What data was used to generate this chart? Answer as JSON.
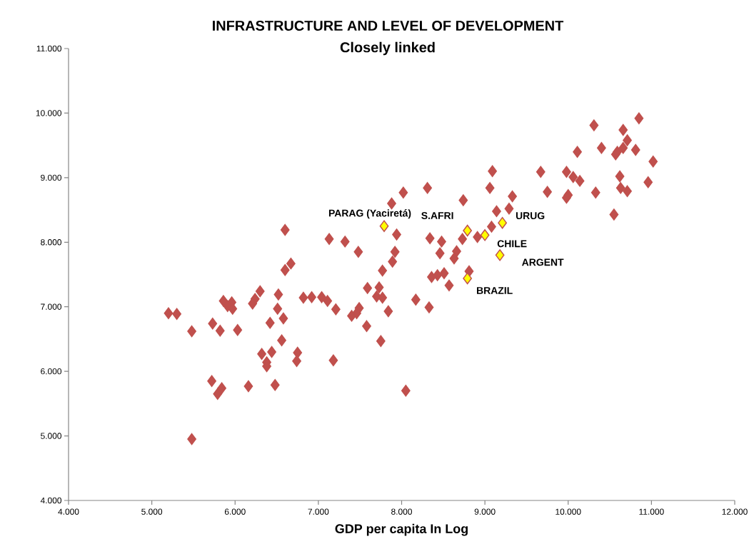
{
  "chart_data": {
    "type": "scatter",
    "title": "INFRASTRUCTURE AND LEVEL OF DEVELOPMENT",
    "subtitle": "Closely linked",
    "xlabel": "GDP per capita In Log",
    "xlim": [
      4,
      12
    ],
    "ylim": [
      4,
      11
    ],
    "xticks": [
      {
        "value": 4,
        "label": "4.000"
      },
      {
        "value": 5,
        "label": "5.000"
      },
      {
        "value": 6,
        "label": "6.000"
      },
      {
        "value": 7,
        "label": "7.000"
      },
      {
        "value": 8,
        "label": "8.000"
      },
      {
        "value": 9,
        "label": "9.000"
      },
      {
        "value": 10,
        "label": "10.000"
      },
      {
        "value": 11,
        "label": "11.000"
      },
      {
        "value": 12,
        "label": "12.000"
      }
    ],
    "yticks": [
      {
        "value": 4,
        "label": "4.000"
      },
      {
        "value": 5,
        "label": "5.000"
      },
      {
        "value": 6,
        "label": "6.000"
      },
      {
        "value": 7,
        "label": "7.000"
      },
      {
        "value": 8,
        "label": "8.000"
      },
      {
        "value": 9,
        "label": "9.000"
      },
      {
        "value": 10,
        "label": "10.000"
      },
      {
        "value": 11,
        "label": "11.000"
      }
    ],
    "marker": "diamond",
    "series": [
      {
        "color": "#c0504d",
        "x": [
          6.6,
          7.13,
          7.32,
          7.48,
          6.67,
          6.6,
          7.59,
          6.3,
          6.52,
          5.86,
          5.96,
          6.24,
          6.21,
          5.91,
          5.97,
          6.82,
          6.92,
          7.04,
          7.11,
          7.21,
          7.49,
          7.46,
          7.4,
          7.58,
          6.51,
          5.2,
          5.3,
          5.73,
          5.82,
          6.03,
          5.48,
          6.42,
          6.58,
          6.56,
          6.32,
          6.44,
          6.38,
          6.38,
          6.75,
          6.74,
          7.18,
          5.72,
          5.84,
          5.79,
          6.16,
          6.48,
          5.48,
          9.09,
          9.67,
          8.31,
          8.02,
          9.06,
          9.75,
          9.33,
          7.88,
          8.74,
          9.14,
          9.29,
          7.94,
          9.08,
          8.91,
          8.73,
          8.34,
          8.48,
          8.46,
          8.66,
          8.63,
          7.92,
          7.89,
          7.77,
          8.81,
          8.36,
          8.43,
          8.51,
          8.57,
          7.73,
          7.7,
          7.77,
          8.17,
          8.33,
          7.84,
          7.75,
          8.05,
          10.85,
          10.31,
          10.66,
          10.71,
          10.66,
          10.4,
          10.11,
          10.81,
          10.57,
          10.59,
          11.02,
          9.98,
          10.06,
          10.14,
          10.62,
          10.96,
          10.0,
          9.98,
          10.33,
          10.63,
          10.71,
          10.55
        ],
        "values": [
          8.19,
          8.05,
          8.01,
          7.85,
          7.67,
          7.57,
          7.29,
          7.24,
          7.19,
          7.09,
          7.07,
          7.12,
          7.05,
          7.01,
          6.97,
          7.14,
          7.15,
          7.15,
          7.09,
          6.96,
          6.98,
          6.9,
          6.86,
          6.7,
          6.97,
          6.9,
          6.89,
          6.74,
          6.63,
          6.64,
          6.62,
          6.75,
          6.82,
          6.48,
          6.27,
          6.3,
          6.14,
          6.08,
          6.29,
          6.16,
          6.17,
          5.85,
          5.74,
          5.65,
          5.77,
          5.79,
          4.95,
          9.1,
          9.09,
          8.84,
          8.77,
          8.84,
          8.78,
          8.71,
          8.6,
          8.65,
          8.48,
          8.52,
          8.12,
          8.24,
          8.08,
          8.05,
          8.06,
          8.01,
          7.83,
          7.86,
          7.75,
          7.85,
          7.7,
          7.56,
          7.55,
          7.46,
          7.49,
          7.52,
          7.33,
          7.3,
          7.16,
          7.14,
          7.11,
          6.99,
          6.93,
          6.47,
          5.7,
          9.92,
          9.81,
          9.74,
          9.58,
          9.46,
          9.46,
          9.4,
          9.43,
          9.36,
          9.4,
          9.25,
          9.09,
          9.01,
          8.95,
          9.02,
          8.93,
          8.73,
          8.69,
          8.77,
          8.84,
          8.79,
          8.43
        ]
      },
      {
        "color": "#ffff00",
        "x": [
          7.79,
          8.79,
          9.21,
          9.0,
          9.18,
          8.79
        ],
        "values": [
          8.25,
          8.18,
          8.3,
          8.11,
          7.8,
          7.44
        ]
      }
    ],
    "annotations": [
      {
        "text": "PARAG (Yaciretá)",
        "x": 7.79,
        "y": 8.25
      },
      {
        "text": "S.AFRI",
        "x": 8.79,
        "y": 8.18
      },
      {
        "text": "URUG",
        "x": 9.21,
        "y": 8.3
      },
      {
        "text": "CHILE",
        "x": 9.0,
        "y": 8.11
      },
      {
        "text": "ARGENT",
        "x": 9.18,
        "y": 7.8
      },
      {
        "text": "BRAZIL",
        "x": 8.79,
        "y": 7.44
      }
    ]
  }
}
